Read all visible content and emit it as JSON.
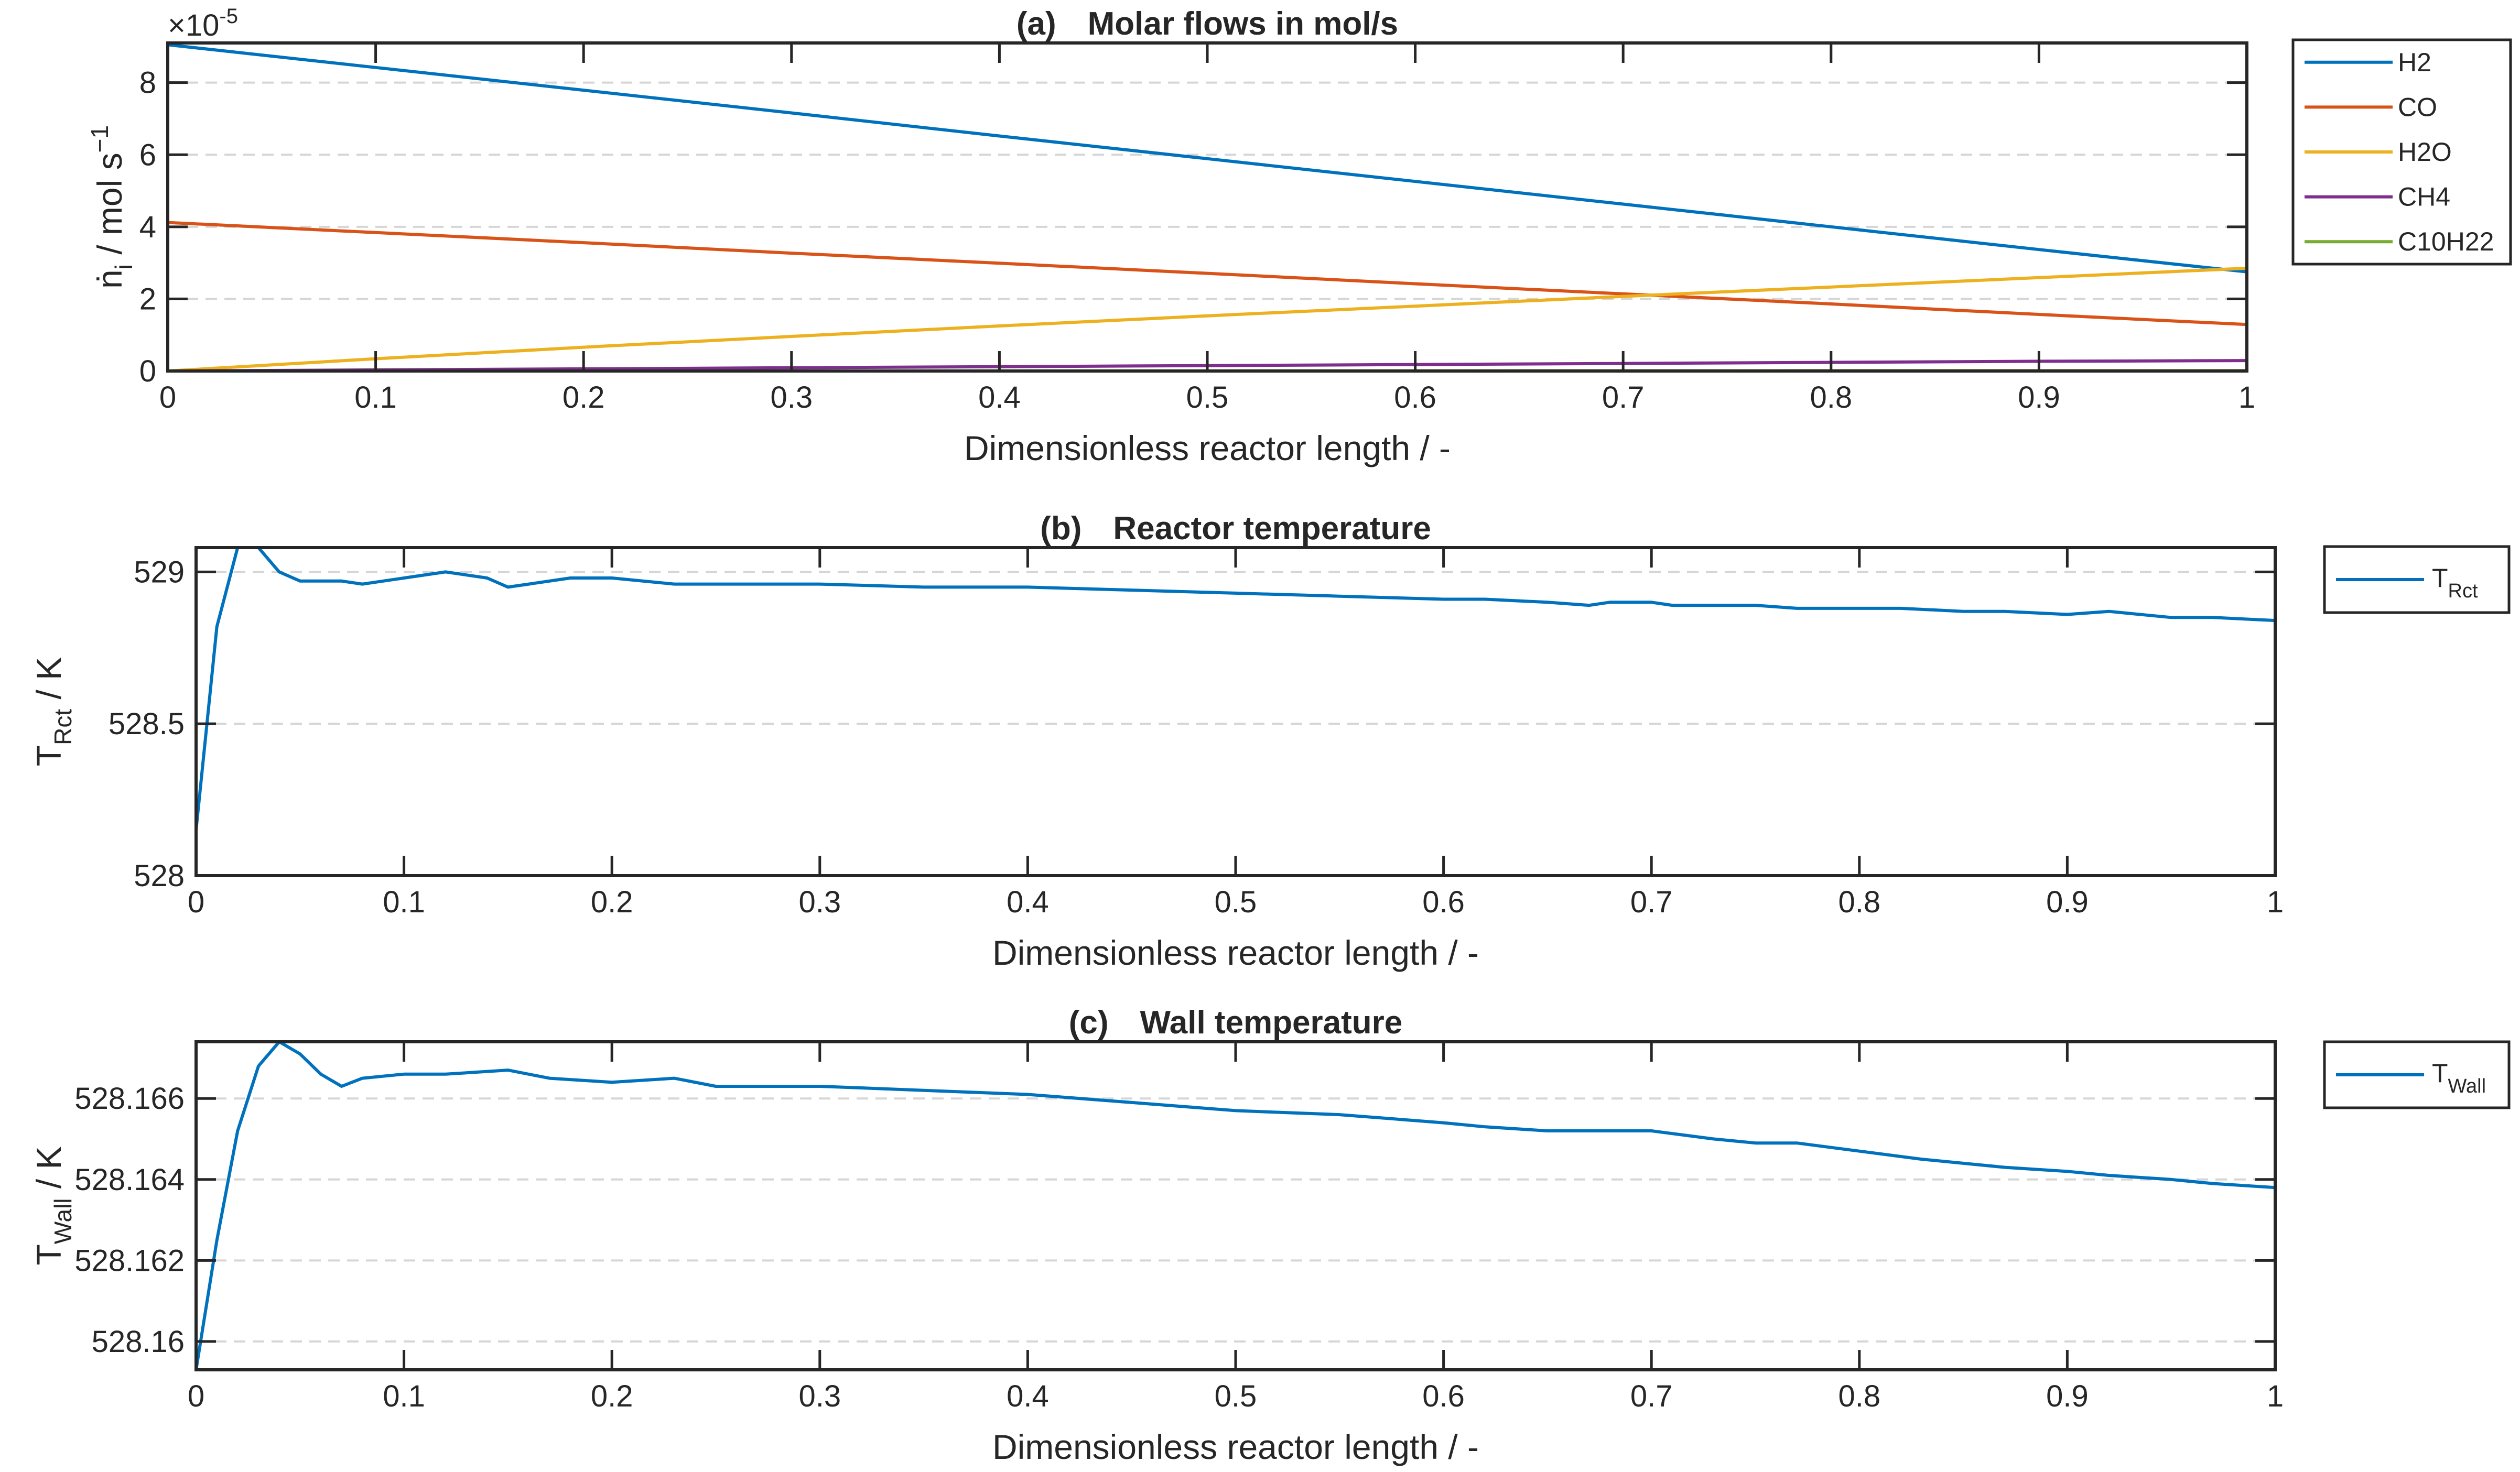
{
  "chart_data": [
    {
      "type": "line",
      "panel": "(a)",
      "title": "Molar flows in mol/s",
      "xlabel": "Dimensionless reactor length / -",
      "ylabel": "ṅi / mol s−1",
      "ylabel_parts": {
        "main": "ṅ",
        "sub": "i",
        "mid": " / mol s",
        "sup": "−1"
      },
      "y_exponent_label": "×10",
      "y_exponent_power": "-5",
      "xlim": [
        0,
        1
      ],
      "ylim": [
        0,
        9.1e-05
      ],
      "xticks": [
        "0",
        "0.1",
        "0.2",
        "0.3",
        "0.4",
        "0.5",
        "0.6",
        "0.7",
        "0.8",
        "0.9",
        "1"
      ],
      "yticks": [
        "0",
        "2",
        "4",
        "6",
        "8"
      ],
      "grid": "y-dashed",
      "legend_position": "outside-right-top",
      "x": [
        0,
        0.1,
        0.2,
        0.3,
        0.4,
        0.5,
        0.6,
        0.7,
        0.8,
        0.9,
        1.0
      ],
      "series": [
        {
          "name": "H2",
          "color": "#0072BD",
          "values": [
            9.05e-05,
            8.42e-05,
            7.79e-05,
            7.16e-05,
            6.52e-05,
            5.89e-05,
            5.26e-05,
            4.63e-05,
            4e-05,
            3.37e-05,
            2.75e-05
          ]
        },
        {
          "name": "CO",
          "color": "#D95319",
          "values": [
            4.12e-05,
            3.84e-05,
            3.56e-05,
            3.27e-05,
            2.99e-05,
            2.71e-05,
            2.42e-05,
            2.14e-05,
            1.86e-05,
            1.57e-05,
            1.29e-05
          ]
        },
        {
          "name": "H2O",
          "color": "#EDB120",
          "values": [
            0.0,
            3.4e-06,
            6.6e-06,
            9.6e-06,
            1.25e-05,
            1.53e-05,
            1.8e-05,
            2.07e-05,
            2.33e-05,
            2.59e-05,
            2.85e-05
          ]
        },
        {
          "name": "CH4",
          "color": "#7E2F8E",
          "values": [
            0.0,
            3e-07,
            6e-07,
            9e-07,
            1.2e-06,
            1.5e-06,
            1.8e-06,
            2.1e-06,
            2.4e-06,
            2.7e-06,
            2.9e-06
          ]
        },
        {
          "name": "C10H22",
          "color": "#77AC30",
          "values": [
            0.0,
            1e-08,
            2e-08,
            3e-08,
            4e-08,
            5e-08,
            6e-08,
            7e-08,
            8e-08,
            9e-08,
            1e-07
          ]
        }
      ]
    },
    {
      "type": "line",
      "panel": "(b)",
      "title": "Reactor temperature",
      "xlabel": "Dimensionless reactor length / -",
      "ylabel_parts": {
        "main": "T",
        "sub": "Rct",
        "mid": " / K"
      },
      "xlim": [
        0,
        1
      ],
      "ylim": [
        528,
        529.08
      ],
      "xticks": [
        "0",
        "0.1",
        "0.2",
        "0.3",
        "0.4",
        "0.5",
        "0.6",
        "0.7",
        "0.8",
        "0.9",
        "1"
      ],
      "yticks": [
        "528",
        "528.5",
        "529"
      ],
      "grid": "y-dashed",
      "legend_position": "outside-right-top",
      "legend_parts": {
        "main": "T",
        "sub": "Rct"
      },
      "series": [
        {
          "name": "TRct",
          "color": "#0072BD",
          "x": [
            0,
            0.01,
            0.02,
            0.03,
            0.04,
            0.05,
            0.06,
            0.07,
            0.08,
            0.09,
            0.1,
            0.12,
            0.14,
            0.15,
            0.16,
            0.18,
            0.2,
            0.23,
            0.26,
            0.3,
            0.35,
            0.4,
            0.45,
            0.5,
            0.55,
            0.6,
            0.62,
            0.65,
            0.67,
            0.68,
            0.7,
            0.71,
            0.73,
            0.75,
            0.77,
            0.8,
            0.82,
            0.85,
            0.87,
            0.9,
            0.92,
            0.95,
            0.97,
            1.0
          ],
          "values": [
            528.15,
            528.82,
            529.08,
            529.08,
            529.0,
            528.97,
            528.97,
            528.97,
            528.96,
            528.97,
            528.98,
            529.0,
            528.98,
            528.95,
            528.96,
            528.98,
            528.98,
            528.96,
            528.96,
            528.96,
            528.95,
            528.95,
            528.94,
            528.93,
            528.92,
            528.91,
            528.91,
            528.9,
            528.89,
            528.9,
            528.9,
            528.89,
            528.89,
            528.89,
            528.88,
            528.88,
            528.88,
            528.87,
            528.87,
            528.86,
            528.87,
            528.85,
            528.85,
            528.84
          ]
        }
      ]
    },
    {
      "type": "line",
      "panel": "(c)",
      "title": "Wall temperature",
      "xlabel": "Dimensionless reactor length / -",
      "ylabel_parts": {
        "main": "T",
        "sub": "Wall",
        "mid": " / K"
      },
      "xlim": [
        0,
        1
      ],
      "ylim": [
        528.1593,
        528.1674
      ],
      "xticks": [
        "0",
        "0.1",
        "0.2",
        "0.3",
        "0.4",
        "0.5",
        "0.6",
        "0.7",
        "0.8",
        "0.9",
        "1"
      ],
      "yticks": [
        "528.16",
        "528.162",
        "528.164",
        "528.166"
      ],
      "grid": "y-dashed",
      "legend_position": "outside-right-top",
      "legend_parts": {
        "main": "T",
        "sub": "Wall"
      },
      "series": [
        {
          "name": "TWall",
          "color": "#0072BD",
          "x": [
            0,
            0.01,
            0.02,
            0.03,
            0.04,
            0.05,
            0.06,
            0.07,
            0.08,
            0.1,
            0.12,
            0.15,
            0.17,
            0.2,
            0.23,
            0.25,
            0.3,
            0.35,
            0.4,
            0.45,
            0.5,
            0.55,
            0.6,
            0.62,
            0.65,
            0.67,
            0.7,
            0.73,
            0.75,
            0.77,
            0.8,
            0.83,
            0.85,
            0.87,
            0.9,
            0.92,
            0.95,
            0.97,
            1.0
          ],
          "values": [
            528.1593,
            528.1625,
            528.1652,
            528.1668,
            528.1674,
            528.1671,
            528.1666,
            528.1663,
            528.1665,
            528.1666,
            528.1666,
            528.1667,
            528.1665,
            528.1664,
            528.1665,
            528.1663,
            528.1663,
            528.1662,
            528.1661,
            528.1659,
            528.1657,
            528.1656,
            528.1654,
            528.1653,
            528.1652,
            528.1652,
            528.1652,
            528.165,
            528.1649,
            528.1649,
            528.1647,
            528.1645,
            528.1644,
            528.1643,
            528.1642,
            528.1641,
            528.164,
            528.1639,
            528.1638
          ]
        }
      ]
    }
  ]
}
